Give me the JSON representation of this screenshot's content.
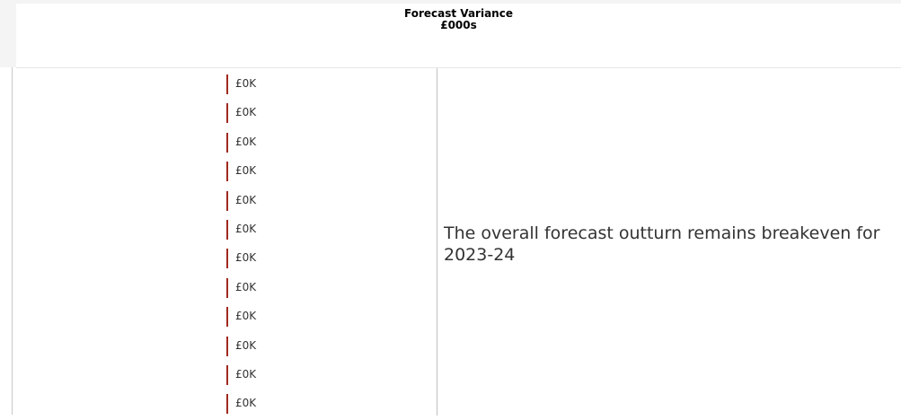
{
  "header": {
    "title": "Forecast Variance",
    "unit": "£000s"
  },
  "table": {
    "rows": [
      "£0K",
      "£0K",
      "£0K",
      "£0K",
      "£0K",
      "£0K",
      "£0K",
      "£0K",
      "£0K",
      "£0K",
      "£0K",
      "£0K"
    ],
    "commentary": "The overall forecast outturn remains breakeven for 2023-24"
  }
}
